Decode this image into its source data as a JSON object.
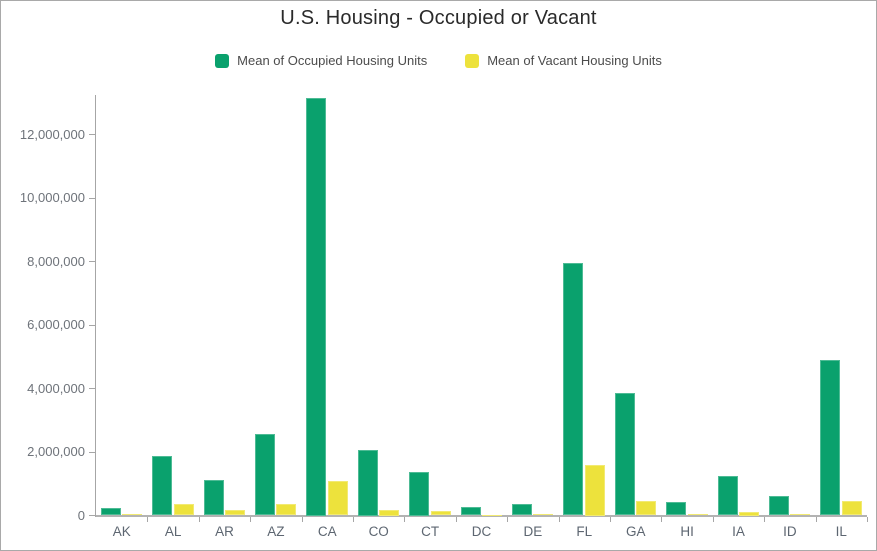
{
  "window": {
    "title": "U.S. Housing - Occupied or Vacant"
  },
  "chart_data": {
    "type": "bar",
    "title": "U.S. Housing - Occupied or Vacant",
    "categories": [
      "AK",
      "AL",
      "AR",
      "AZ",
      "CA",
      "CO",
      "CT",
      "DC",
      "DE",
      "FL",
      "GA",
      "HI",
      "IA",
      "ID",
      "IL"
    ],
    "series": [
      {
        "name": "Mean of Occupied Housing Units",
        "color": "#0aa16d",
        "values": [
          250000,
          1870000,
          1120000,
          2570000,
          13150000,
          2080000,
          1370000,
          270000,
          360000,
          7940000,
          3850000,
          420000,
          1230000,
          620000,
          4890000
        ]
      },
      {
        "name": "Mean of Vacant Housing Units",
        "color": "#ede23c",
        "values": [
          50000,
          350000,
          160000,
          360000,
          1080000,
          190000,
          140000,
          30000,
          60000,
          1590000,
          460000,
          60000,
          110000,
          60000,
          450000
        ]
      }
    ],
    "xlabel": "",
    "ylabel": "",
    "ylim": [
      0,
      13400000
    ],
    "yticks": [
      0,
      2000000,
      4000000,
      6000000,
      8000000,
      10000000,
      12000000
    ],
    "ytick_format": "thousands-comma",
    "grid": false,
    "legend_position": "top",
    "colors": {
      "axis": "#a6a6a6",
      "baseline": "#b3b3b3",
      "tick_label": "#6e737a",
      "x_label": "#5d6671",
      "title": "#2a2a2a",
      "legend_label": "#4c4c4c",
      "panel_border": "#a9a9a9",
      "background": "#ffffff"
    }
  }
}
